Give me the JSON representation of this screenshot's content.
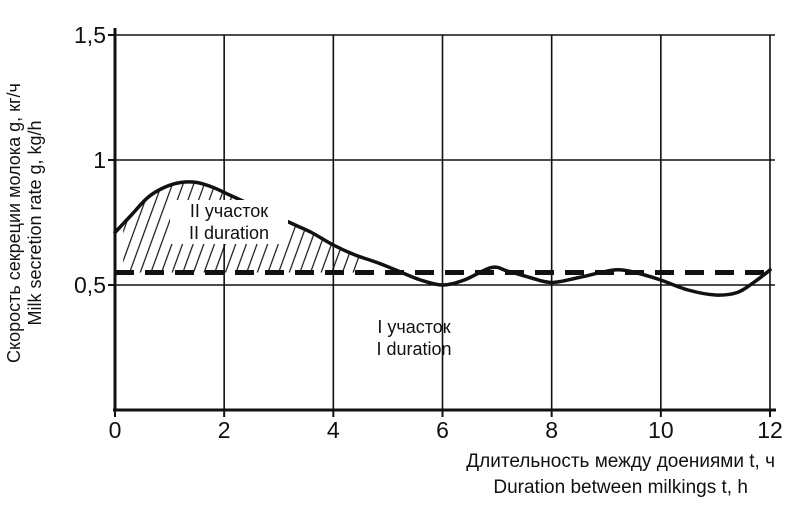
{
  "figure": {
    "background": "#ffffff",
    "ink": "#111111"
  },
  "chart_data": {
    "type": "line",
    "title": "",
    "xlabel_ru": "Длительность между доениями t, ч",
    "xlabel_en": "Duration between milkings t, h",
    "ylabel_ru": "Скорость секреции молока g, кг/ч",
    "ylabel_en": "Milk secretion rate g, kg/h",
    "xlim": [
      0,
      12
    ],
    "ylim": [
      0,
      1.5
    ],
    "x_tick_values": [
      0,
      2,
      4,
      6,
      8,
      10,
      12
    ],
    "x_tick_labels": [
      "0",
      "2",
      "4",
      "6",
      "8",
      "10",
      "12"
    ],
    "y_tick_values": [
      0.5,
      1.0,
      1.5
    ],
    "y_tick_labels": [
      "0,5",
      "1",
      "1,5"
    ],
    "grid": true,
    "legend": "none",
    "series": [
      {
        "name": "milk-secretion-rate-curve",
        "type": "line",
        "x": [
          0,
          0.3,
          0.6,
          0.9,
          1.2,
          1.5,
          1.8,
          2.1,
          2.4,
          2.7,
          3.0,
          3.3,
          3.6,
          4.0,
          4.4,
          4.8,
          5.2,
          5.6,
          6.0,
          6.4,
          6.9,
          7.2,
          7.6,
          8.0,
          8.5,
          9.0,
          9.3,
          9.7,
          10.0,
          10.5,
          11.0,
          11.4,
          11.7,
          12.0
        ],
        "y": [
          0.71,
          0.78,
          0.85,
          0.89,
          0.91,
          0.91,
          0.89,
          0.86,
          0.83,
          0.8,
          0.77,
          0.74,
          0.71,
          0.66,
          0.62,
          0.59,
          0.555,
          0.52,
          0.5,
          0.52,
          0.57,
          0.555,
          0.53,
          0.51,
          0.53,
          0.555,
          0.56,
          0.54,
          0.52,
          0.48,
          0.46,
          0.47,
          0.51,
          0.56
        ]
      },
      {
        "name": "steady-secretion-level-dashed-line",
        "type": "dashed-horizontal",
        "y": 0.55,
        "x_start": 0,
        "x_end": 12
      }
    ],
    "hatch_region": {
      "x_start": 0.15,
      "x_end": 4.55,
      "baseline_y": 0.55
    },
    "annotations": [
      {
        "name": "region-II-label",
        "lines": [
          "II участок",
          "II duration"
        ]
      },
      {
        "name": "region-I-label",
        "lines": [
          "I участок",
          "I duration"
        ]
      }
    ]
  }
}
